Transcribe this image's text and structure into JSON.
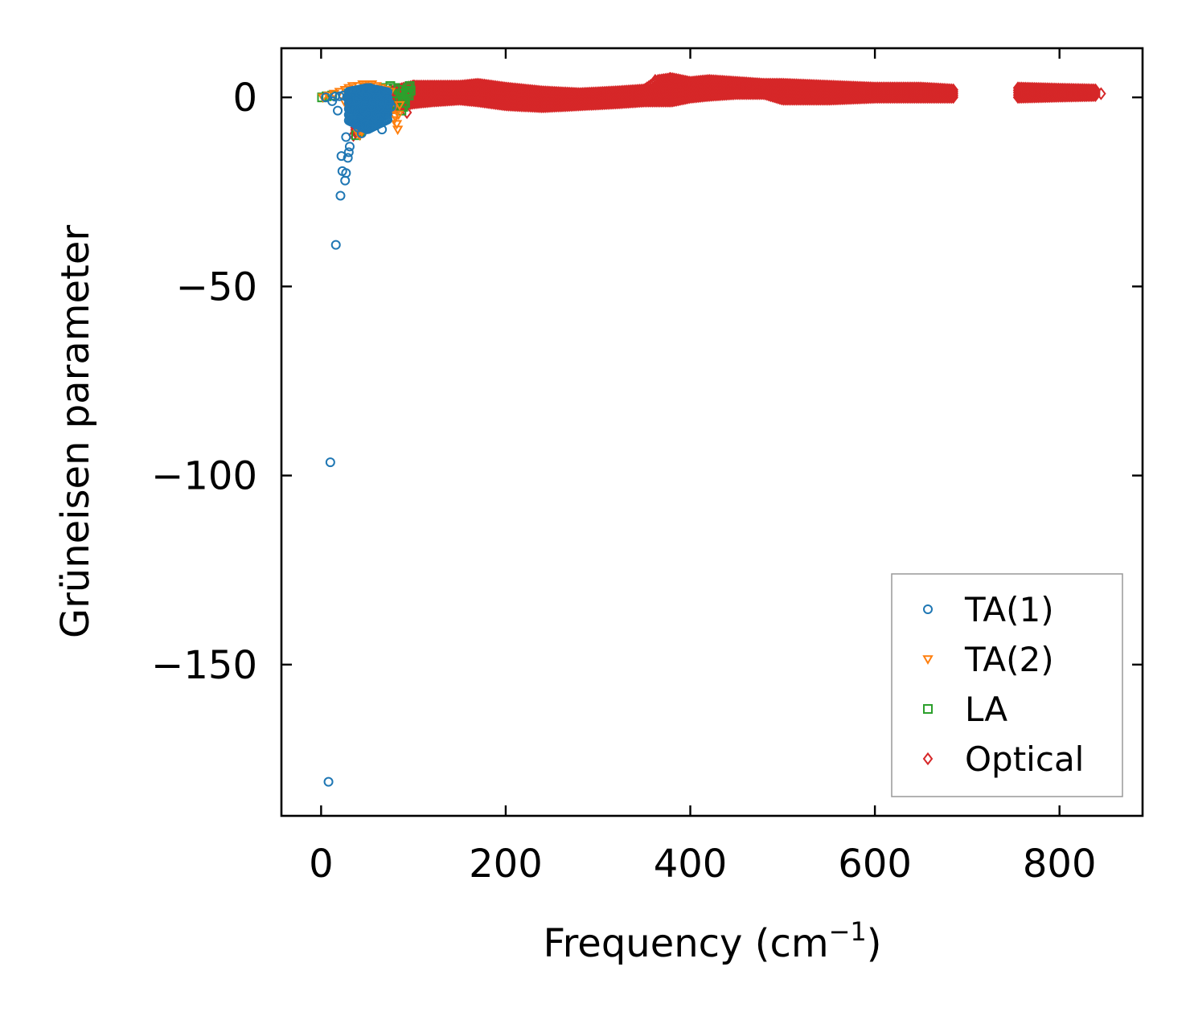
{
  "chart_data": {
    "type": "scatter",
    "xlabel": "Frequency (cm",
    "xlabel_sup": "−1",
    "xlabel_close": ")",
    "ylabel": "Grüneisen parameter",
    "xlim": [
      -43,
      890
    ],
    "ylim": [
      -190,
      13
    ],
    "xticks": [
      0,
      200,
      400,
      600,
      800
    ],
    "yticks": [
      0,
      -50,
      -100,
      -150
    ],
    "xtick_labels": [
      "0",
      "200",
      "400",
      "600",
      "800"
    ],
    "ytick_labels": [
      "0",
      "−50",
      "−100",
      "−150"
    ],
    "grid": false,
    "legend_position": "lower-right",
    "series": [
      {
        "name": "TA(1)",
        "marker": "circle",
        "color": "#1f77b4",
        "points": [
          [
            8,
            -181
          ],
          [
            10,
            -96.5
          ],
          [
            16,
            -39
          ],
          [
            21,
            -26
          ],
          [
            23,
            -19.5
          ],
          [
            26,
            -22
          ],
          [
            27,
            -20
          ],
          [
            22,
            -15.5
          ],
          [
            29,
            -16
          ],
          [
            30,
            -14.5
          ],
          [
            31,
            -13
          ],
          [
            27,
            -10.5
          ],
          [
            18,
            -3.5
          ],
          [
            12,
            -1
          ],
          [
            32,
            -1.5
          ],
          [
            35,
            -2.5
          ],
          [
            38,
            -3
          ],
          [
            40,
            -4
          ],
          [
            42,
            -5
          ],
          [
            45,
            -6
          ],
          [
            48,
            -7
          ],
          [
            50,
            -8
          ],
          [
            52,
            -7.5
          ],
          [
            55,
            -6.5
          ],
          [
            58,
            -5
          ],
          [
            60,
            -4
          ],
          [
            62,
            -3
          ],
          [
            65,
            -2
          ],
          [
            68,
            -1
          ],
          [
            70,
            0
          ],
          [
            66,
            -8.5
          ],
          [
            44,
            -9.5
          ],
          [
            36,
            -1
          ],
          [
            39,
            -0.5
          ],
          [
            41,
            0.5
          ],
          [
            43,
            1
          ],
          [
            46,
            1.5
          ],
          [
            49,
            2
          ],
          [
            53,
            2.5
          ],
          [
            56,
            2
          ],
          [
            59,
            1.5
          ],
          [
            63,
            1
          ],
          [
            67,
            0.5
          ],
          [
            72,
            -0.5
          ],
          [
            74,
            -1.5
          ],
          [
            76,
            -2.5
          ],
          [
            47,
            -3.5
          ],
          [
            51,
            -4.5
          ],
          [
            54,
            -2.5
          ],
          [
            57,
            -1
          ],
          [
            61,
            0
          ],
          [
            64,
            -5.5
          ],
          [
            34,
            -6
          ],
          [
            37,
            -7
          ],
          [
            40,
            -8
          ],
          [
            28,
            0
          ],
          [
            24,
            0.5
          ],
          [
            20,
            0.3
          ],
          [
            15,
            0.2
          ],
          [
            5,
            0
          ]
        ]
      },
      {
        "name": "TA(2)",
        "marker": "triangle-down",
        "color": "#ff7f0e",
        "points": [
          [
            2,
            0
          ],
          [
            8,
            0.5
          ],
          [
            14,
            1
          ],
          [
            20,
            1.5
          ],
          [
            26,
            2
          ],
          [
            30,
            2.5
          ],
          [
            34,
            3
          ],
          [
            40,
            3
          ],
          [
            45,
            3.5
          ],
          [
            50,
            3
          ],
          [
            55,
            3.5
          ],
          [
            60,
            3
          ],
          [
            65,
            2.5
          ],
          [
            70,
            2
          ],
          [
            75,
            1.5
          ],
          [
            78,
            -3
          ],
          [
            80,
            -5
          ],
          [
            82,
            -7
          ],
          [
            84,
            -4.5
          ],
          [
            79,
            -6
          ],
          [
            83,
            -8.5
          ],
          [
            85,
            -2
          ],
          [
            38,
            -8
          ],
          [
            40,
            -9.5
          ],
          [
            42,
            -10
          ],
          [
            72,
            -1.5
          ],
          [
            68,
            -3.5
          ],
          [
            60,
            -5.5
          ],
          [
            52,
            -7.5
          ],
          [
            44,
            -9
          ],
          [
            36,
            -6
          ],
          [
            30,
            -3
          ],
          [
            25,
            -1
          ]
        ]
      },
      {
        "name": "LA",
        "marker": "square",
        "color": "#2ca02c",
        "points": [
          [
            1,
            0
          ],
          [
            6,
            0.3
          ],
          [
            12,
            0.5
          ],
          [
            30,
            1
          ],
          [
            40,
            1.5
          ],
          [
            50,
            2
          ],
          [
            60,
            1.8
          ],
          [
            70,
            2.5
          ],
          [
            75,
            3
          ],
          [
            80,
            2.5
          ],
          [
            84,
            2
          ],
          [
            86,
            1
          ],
          [
            88,
            0
          ],
          [
            90,
            -0.5
          ],
          [
            92,
            1.5
          ],
          [
            94,
            2.5
          ],
          [
            96,
            3
          ],
          [
            93,
            1
          ],
          [
            91,
            -1.5
          ],
          [
            89,
            -2.5
          ],
          [
            87,
            -3.5
          ],
          [
            85,
            -1
          ],
          [
            95,
            0.5
          ],
          [
            97,
            1.8
          ],
          [
            38,
            -10
          ],
          [
            42,
            -9
          ],
          [
            48,
            -8
          ],
          [
            55,
            -7
          ],
          [
            62,
            -5.5
          ],
          [
            68,
            -4
          ],
          [
            74,
            -2
          ],
          [
            80,
            -1
          ]
        ]
      },
      {
        "name": "Optical",
        "marker": "diamond",
        "color": "#d62728",
        "envelope": [
          [
            35,
            -10,
            -10
          ],
          [
            40,
            -8,
            -2
          ],
          [
            50,
            -4,
            0.5
          ],
          [
            60,
            -3.5,
            1
          ],
          [
            75,
            -3,
            1.5
          ],
          [
            90,
            -2,
            2.5
          ],
          [
            100,
            -1.5,
            3
          ],
          [
            120,
            -1,
            3
          ],
          [
            150,
            -0.5,
            3
          ],
          [
            170,
            -1,
            3.5
          ],
          [
            200,
            -2,
            2.5
          ],
          [
            240,
            -2.5,
            1.5
          ],
          [
            280,
            -2,
            1
          ],
          [
            320,
            -1.5,
            1.5
          ],
          [
            350,
            -1,
            2
          ],
          [
            365,
            -1,
            4.5
          ],
          [
            380,
            -1,
            5
          ],
          [
            400,
            0,
            4
          ],
          [
            420,
            0.5,
            4.5
          ],
          [
            450,
            1,
            4
          ],
          [
            480,
            1,
            3.5
          ],
          [
            500,
            -0.5,
            3.5
          ],
          [
            550,
            -0.5,
            3
          ],
          [
            600,
            0,
            2.5
          ],
          [
            650,
            0,
            2.5
          ],
          [
            685,
            0,
            2
          ]
        ],
        "envelope2": [
          [
            755,
            0,
            2.5
          ],
          [
            800,
            0.3,
            2.2
          ],
          [
            840,
            0.5,
            2
          ]
        ],
        "points": [
          [
            362,
            4.5
          ],
          [
            378,
            5
          ],
          [
            395,
            3.5
          ],
          [
            412,
            4
          ],
          [
            845,
            1
          ],
          [
            100,
            3
          ],
          [
            60,
            -4
          ],
          [
            40,
            -9
          ],
          [
            93,
            -4
          ]
        ]
      }
    ]
  }
}
